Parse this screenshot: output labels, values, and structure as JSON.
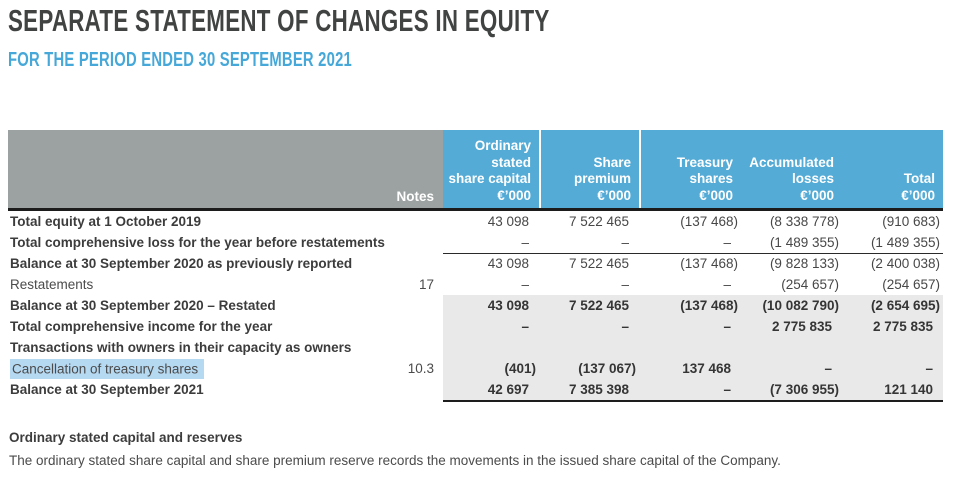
{
  "page": {
    "title": "SEPARATE STATEMENT OF CHANGES IN EQUITY",
    "subtitle": "FOR THE PERIOD ENDED 30 SEPTEMBER 2021"
  },
  "colors": {
    "accent_blue": "#54abd6",
    "header_gray": "#9ca2a2",
    "shaded_row": "#e9e9e9",
    "selection_highlight": "#b6d9f2",
    "title_dark": "#414242"
  },
  "table": {
    "notes_header": "Notes",
    "columns": [
      {
        "lines": [
          "Ordinary",
          "stated",
          "share capital",
          "€’000"
        ]
      },
      {
        "lines": [
          "Share",
          "premium",
          "€’000"
        ]
      },
      {
        "lines": [
          "Treasury",
          "shares",
          "€’000"
        ]
      },
      {
        "lines": [
          "Accumulated",
          "losses",
          "€’000"
        ]
      },
      {
        "lines": [
          "Total",
          "€’000"
        ]
      }
    ],
    "rows": [
      {
        "label": "Total equity at 1 October 2019",
        "note": "",
        "values": [
          "43 098",
          "7 522 465",
          "(137 468)",
          "(8 338 778)",
          "(910 683)"
        ]
      },
      {
        "label": "Total comprehensive loss for the year before restatements",
        "note": "",
        "values": [
          "–",
          "–",
          "–",
          "(1 489 355)",
          "(1 489 355)"
        ]
      },
      {
        "label": "Balance at 30 September 2020 as previously reported",
        "note": "",
        "values": [
          "43 098",
          "7 522 465",
          "(137 468)",
          "(9 828 133)",
          "(2 400 038)"
        ]
      },
      {
        "label": "Restatements",
        "note": "17",
        "values": [
          "–",
          "–",
          "–",
          "(254 657)",
          "(254 657)"
        ]
      },
      {
        "label": "Balance at 30 September 2020 – Restated",
        "note": "",
        "values": [
          "43 098",
          "7 522 465",
          "(137 468)",
          "(10 082 790)",
          "(2 654 695)"
        ]
      },
      {
        "label": "Total comprehensive income for the year",
        "note": "",
        "values": [
          "–",
          "–",
          "–",
          "2 775 835",
          "2 775 835"
        ]
      },
      {
        "label": "Transactions with owners in their capacity as owners",
        "note": "",
        "values": [
          "",
          "",
          "",
          "",
          ""
        ]
      },
      {
        "label": "Cancellation of treasury shares",
        "note": "10.3",
        "values": [
          "(401)",
          "(137 067)",
          "137 468",
          "–",
          "–"
        ]
      },
      {
        "label": "Balance at 30 September 2021",
        "note": "",
        "values": [
          "42 697",
          "7 385 398",
          "–",
          "(7 306 955)",
          "121 140"
        ]
      }
    ]
  },
  "footnote": {
    "heading": "Ordinary stated capital and reserves",
    "body": "The ordinary stated share capital and share premium reserve records the movements in the issued share capital of the Company."
  }
}
